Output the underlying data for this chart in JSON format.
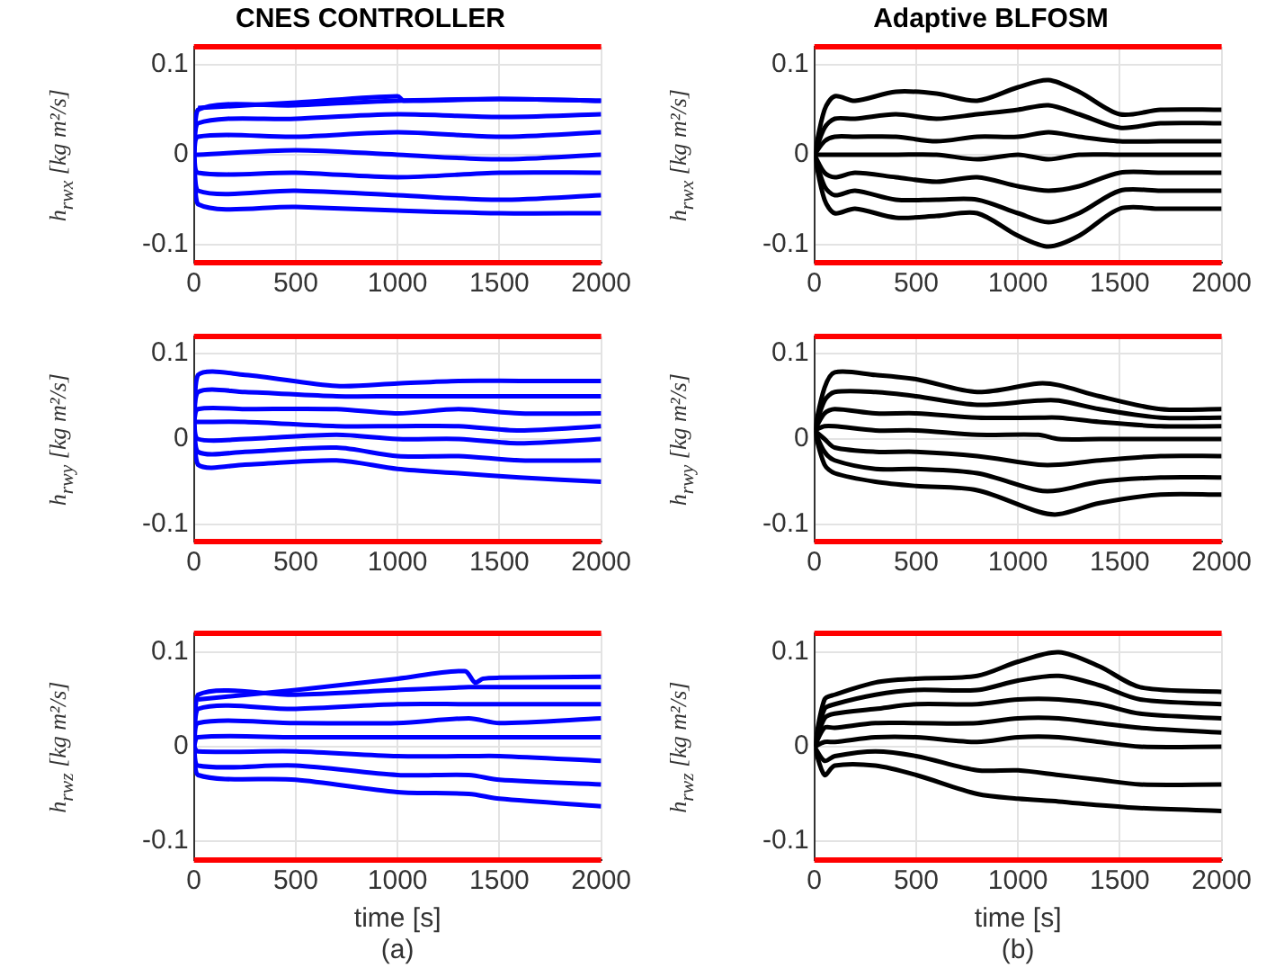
{
  "chart_data": [
    {
      "type": "line",
      "title": "CNES CONTROLLER",
      "ylabel": "h$_{rwx}$ [kg m²/s]",
      "xlim": [
        0,
        2000
      ],
      "xticks": [
        0,
        500,
        1000,
        1500,
        2000
      ],
      "ylim": [
        -0.12,
        0.12
      ],
      "yticks": [
        -0.1,
        0,
        0.1
      ],
      "grid": true,
      "x": [
        0,
        20,
        500,
        1000,
        1500,
        2000
      ],
      "series": [
        {
          "color": "#0000ff",
          "values": [
            0,
            0.05,
            0.055,
            0.06,
            0.062,
            0.06
          ]
        },
        {
          "color": "#0000ff",
          "values": [
            0,
            0.035,
            0.04,
            0.045,
            0.042,
            0.045
          ]
        },
        {
          "color": "#0000ff",
          "values": [
            0,
            0.02,
            0.02,
            0.025,
            0.02,
            0.025
          ]
        },
        {
          "color": "#0000ff",
          "values": [
            0,
            0,
            0.005,
            0,
            -0.005,
            0
          ]
        },
        {
          "color": "#0000ff",
          "values": [
            0,
            -0.02,
            -0.02,
            -0.025,
            -0.02,
            -0.02
          ]
        },
        {
          "color": "#0000ff",
          "values": [
            0,
            -0.04,
            -0.04,
            -0.045,
            -0.05,
            -0.045
          ]
        },
        {
          "color": "#0000ff",
          "values": [
            0,
            -0.055,
            -0.058,
            -0.062,
            -0.065,
            -0.065
          ]
        },
        {
          "color": "#0000ff",
          "x": [
            20,
            500,
            1000,
            1030,
            1500,
            2000
          ],
          "values": [
            0.052,
            0.058,
            0.065,
            0.06,
            0.062,
            0.06
          ]
        }
      ],
      "ref_lines": [
        {
          "axis": "y",
          "value": 0.12,
          "color": "#ff0000"
        },
        {
          "axis": "y",
          "value": -0.12,
          "color": "#ff0000"
        }
      ]
    },
    {
      "type": "line",
      "title": "Adaptive BLFOSM",
      "ylabel": "h$_{rwx}$ [kg m²/s]",
      "xlim": [
        0,
        2000
      ],
      "xticks": [
        0,
        500,
        1000,
        1500,
        2000
      ],
      "ylim": [
        -0.12,
        0.12
      ],
      "yticks": [
        -0.1,
        0,
        0.1
      ],
      "grid": true,
      "x": [
        0,
        50,
        100,
        200,
        400,
        600,
        800,
        1000,
        1150,
        1300,
        1500,
        1700,
        2000
      ],
      "series": [
        {
          "color": "#000000",
          "values": [
            0,
            0.05,
            0.065,
            0.06,
            0.07,
            0.068,
            0.06,
            0.075,
            0.083,
            0.07,
            0.045,
            0.05,
            0.05
          ]
        },
        {
          "color": "#000000",
          "values": [
            0,
            0.03,
            0.04,
            0.04,
            0.045,
            0.04,
            0.045,
            0.05,
            0.055,
            0.045,
            0.03,
            0.035,
            0.035
          ]
        },
        {
          "color": "#000000",
          "values": [
            0,
            0.015,
            0.02,
            0.02,
            0.02,
            0.015,
            0.02,
            0.02,
            0.025,
            0.02,
            0.015,
            0.015,
            0.015
          ]
        },
        {
          "color": "#000000",
          "values": [
            0,
            0,
            0,
            0,
            0,
            0,
            -0.005,
            0,
            -0.005,
            0,
            0,
            0,
            0
          ]
        },
        {
          "color": "#000000",
          "values": [
            0,
            -0.02,
            -0.025,
            -0.02,
            -0.025,
            -0.03,
            -0.025,
            -0.035,
            -0.04,
            -0.035,
            -0.02,
            -0.02,
            -0.02
          ]
        },
        {
          "color": "#000000",
          "values": [
            0,
            -0.035,
            -0.045,
            -0.04,
            -0.05,
            -0.05,
            -0.05,
            -0.065,
            -0.075,
            -0.065,
            -0.04,
            -0.04,
            -0.04
          ]
        },
        {
          "color": "#000000",
          "values": [
            0,
            -0.05,
            -0.065,
            -0.06,
            -0.07,
            -0.068,
            -0.065,
            -0.09,
            -0.102,
            -0.09,
            -0.06,
            -0.06,
            -0.06
          ]
        }
      ],
      "ref_lines": [
        {
          "axis": "y",
          "value": 0.12,
          "color": "#ff0000"
        },
        {
          "axis": "y",
          "value": -0.12,
          "color": "#ff0000"
        }
      ]
    },
    {
      "type": "line",
      "ylabel": "h$_{rwy}$ [kg m²/s]",
      "xlim": [
        0,
        2000
      ],
      "xticks": [
        0,
        500,
        1000,
        1500,
        2000
      ],
      "ylim": [
        -0.12,
        0.12
      ],
      "yticks": [
        -0.1,
        0,
        0.1
      ],
      "grid": true,
      "x": [
        0,
        20,
        250,
        700,
        1000,
        1300,
        1600,
        2000
      ],
      "series": [
        {
          "color": "#0000ff",
          "values": [
            0.02,
            0.075,
            0.075,
            0.062,
            0.065,
            0.068,
            0.068,
            0.068
          ]
        },
        {
          "color": "#0000ff",
          "values": [
            0.02,
            0.055,
            0.055,
            0.05,
            0.05,
            0.05,
            0.05,
            0.05
          ]
        },
        {
          "color": "#0000ff",
          "values": [
            0.02,
            0.035,
            0.035,
            0.035,
            0.03,
            0.035,
            0.03,
            0.03
          ]
        },
        {
          "color": "#0000ff",
          "values": [
            0.02,
            0.02,
            0.02,
            0.015,
            0.015,
            0.015,
            0.01,
            0.015
          ]
        },
        {
          "color": "#0000ff",
          "values": [
            0.02,
            0,
            0,
            0.005,
            0,
            0,
            -0.005,
            0
          ]
        },
        {
          "color": "#0000ff",
          "values": [
            0.02,
            -0.015,
            -0.015,
            -0.01,
            -0.02,
            -0.02,
            -0.025,
            -0.025
          ]
        },
        {
          "color": "#0000ff",
          "values": [
            0.02,
            -0.03,
            -0.03,
            -0.025,
            -0.035,
            -0.04,
            -0.045,
            -0.05
          ]
        }
      ],
      "ref_lines": [
        {
          "axis": "y",
          "value": 0.12,
          "color": "#ff0000"
        },
        {
          "axis": "y",
          "value": -0.12,
          "color": "#ff0000"
        }
      ]
    },
    {
      "type": "line",
      "ylabel": "h$_{rwy}$ [kg m²/s]",
      "xlim": [
        0,
        2000
      ],
      "xticks": [
        0,
        500,
        1000,
        1500,
        2000
      ],
      "ylim": [
        -0.12,
        0.12
      ],
      "yticks": [
        -0.1,
        0,
        0.1
      ],
      "grid": true,
      "x": [
        0,
        50,
        100,
        300,
        500,
        800,
        1100,
        1200,
        1400,
        1700,
        2000
      ],
      "series": [
        {
          "color": "#000000",
          "values": [
            0.01,
            0.06,
            0.078,
            0.075,
            0.07,
            0.055,
            0.065,
            0.063,
            0.05,
            0.035,
            0.035
          ]
        },
        {
          "color": "#000000",
          "values": [
            0.01,
            0.045,
            0.055,
            0.055,
            0.05,
            0.04,
            0.045,
            0.045,
            0.035,
            0.025,
            0.025
          ]
        },
        {
          "color": "#000000",
          "values": [
            0.01,
            0.03,
            0.035,
            0.03,
            0.03,
            0.025,
            0.025,
            0.025,
            0.02,
            0.015,
            0.015
          ]
        },
        {
          "color": "#000000",
          "values": [
            0.01,
            0.015,
            0.015,
            0.01,
            0.01,
            0.005,
            0.005,
            0,
            0,
            0,
            0
          ]
        },
        {
          "color": "#000000",
          "values": [
            0.01,
            0,
            -0.01,
            -0.015,
            -0.015,
            -0.02,
            -0.03,
            -0.03,
            -0.025,
            -0.02,
            -0.02
          ]
        },
        {
          "color": "#000000",
          "values": [
            0.01,
            -0.015,
            -0.025,
            -0.035,
            -0.035,
            -0.04,
            -0.06,
            -0.06,
            -0.05,
            -0.045,
            -0.045
          ]
        },
        {
          "color": "#000000",
          "values": [
            0.01,
            -0.03,
            -0.04,
            -0.05,
            -0.055,
            -0.06,
            -0.085,
            -0.088,
            -0.075,
            -0.065,
            -0.065
          ]
        }
      ],
      "ref_lines": [
        {
          "axis": "y",
          "value": 0.12,
          "color": "#ff0000"
        },
        {
          "axis": "y",
          "value": -0.12,
          "color": "#ff0000"
        }
      ]
    },
    {
      "type": "line",
      "xlabel": "time [s]",
      "ylabel": "h$_{rwz}$ [kg m²/s]",
      "annotations": [
        "(a)"
      ],
      "xlim": [
        0,
        2000
      ],
      "xticks": [
        0,
        500,
        1000,
        1500,
        2000
      ],
      "ylim": [
        -0.12,
        0.12
      ],
      "yticks": [
        -0.1,
        0,
        0.1
      ],
      "grid": true,
      "x": [
        0,
        20,
        500,
        1000,
        1350,
        1500,
        2000
      ],
      "series": [
        {
          "color": "#0000ff",
          "values": [
            0,
            0.055,
            0.055,
            0.06,
            0.063,
            0.063,
            0.063
          ]
        },
        {
          "color": "#0000ff",
          "values": [
            0,
            0.04,
            0.04,
            0.045,
            0.045,
            0.045,
            0.045
          ]
        },
        {
          "color": "#0000ff",
          "values": [
            0,
            0.025,
            0.025,
            0.025,
            0.03,
            0.025,
            0.03
          ]
        },
        {
          "color": "#0000ff",
          "values": [
            0,
            0.01,
            0.01,
            0.01,
            0.01,
            0.01,
            0.01
          ]
        },
        {
          "color": "#0000ff",
          "values": [
            0,
            -0.005,
            -0.005,
            -0.01,
            -0.01,
            -0.01,
            -0.015
          ]
        },
        {
          "color": "#0000ff",
          "values": [
            0,
            -0.02,
            -0.02,
            -0.03,
            -0.03,
            -0.035,
            -0.04
          ]
        },
        {
          "color": "#0000ff",
          "values": [
            0,
            -0.03,
            -0.035,
            -0.048,
            -0.05,
            -0.055,
            -0.063
          ]
        },
        {
          "color": "#0000ff",
          "x": [
            20,
            500,
            1000,
            1330,
            1380,
            1420,
            1500,
            2000
          ],
          "values": [
            0.05,
            0.06,
            0.072,
            0.08,
            0.068,
            0.072,
            0.073,
            0.074
          ]
        }
      ],
      "ref_lines": [
        {
          "axis": "y",
          "value": 0.12,
          "color": "#ff0000"
        },
        {
          "axis": "y",
          "value": -0.12,
          "color": "#ff0000"
        }
      ]
    },
    {
      "type": "line",
      "xlabel": "time [s]",
      "ylabel": "h$_{rwz}$ [kg m²/s]",
      "annotations": [
        "(b)"
      ],
      "xlim": [
        0,
        2000
      ],
      "xticks": [
        0,
        500,
        1000,
        1500,
        2000
      ],
      "ylim": [
        -0.12,
        0.12
      ],
      "yticks": [
        -0.1,
        0,
        0.1
      ],
      "grid": true,
      "x": [
        0,
        50,
        100,
        300,
        500,
        800,
        1000,
        1200,
        1400,
        1600,
        2000
      ],
      "series": [
        {
          "color": "#000000",
          "values": [
            0,
            0.05,
            0.055,
            0.068,
            0.072,
            0.075,
            0.09,
            0.1,
            0.085,
            0.063,
            0.058
          ]
        },
        {
          "color": "#000000",
          "values": [
            0,
            0.04,
            0.045,
            0.055,
            0.06,
            0.06,
            0.07,
            0.075,
            0.065,
            0.05,
            0.045
          ]
        },
        {
          "color": "#000000",
          "values": [
            0,
            0.03,
            0.035,
            0.04,
            0.045,
            0.045,
            0.05,
            0.05,
            0.045,
            0.035,
            0.03
          ]
        },
        {
          "color": "#000000",
          "values": [
            0,
            0.02,
            0.02,
            0.025,
            0.025,
            0.025,
            0.03,
            0.03,
            0.025,
            0.02,
            0.015
          ]
        },
        {
          "color": "#000000",
          "values": [
            0,
            0.005,
            0.005,
            0.01,
            0.01,
            0.005,
            0.01,
            0.01,
            0.005,
            0,
            0
          ]
        },
        {
          "color": "#000000",
          "values": [
            0,
            -0.015,
            -0.01,
            -0.005,
            -0.01,
            -0.025,
            -0.025,
            -0.03,
            -0.035,
            -0.04,
            -0.04
          ]
        },
        {
          "color": "#000000",
          "values": [
            0,
            -0.03,
            -0.02,
            -0.02,
            -0.03,
            -0.05,
            -0.055,
            -0.058,
            -0.062,
            -0.065,
            -0.068
          ]
        }
      ],
      "ref_lines": [
        {
          "axis": "y",
          "value": 0.12,
          "color": "#ff0000"
        },
        {
          "axis": "y",
          "value": -0.12,
          "color": "#ff0000"
        }
      ]
    }
  ]
}
